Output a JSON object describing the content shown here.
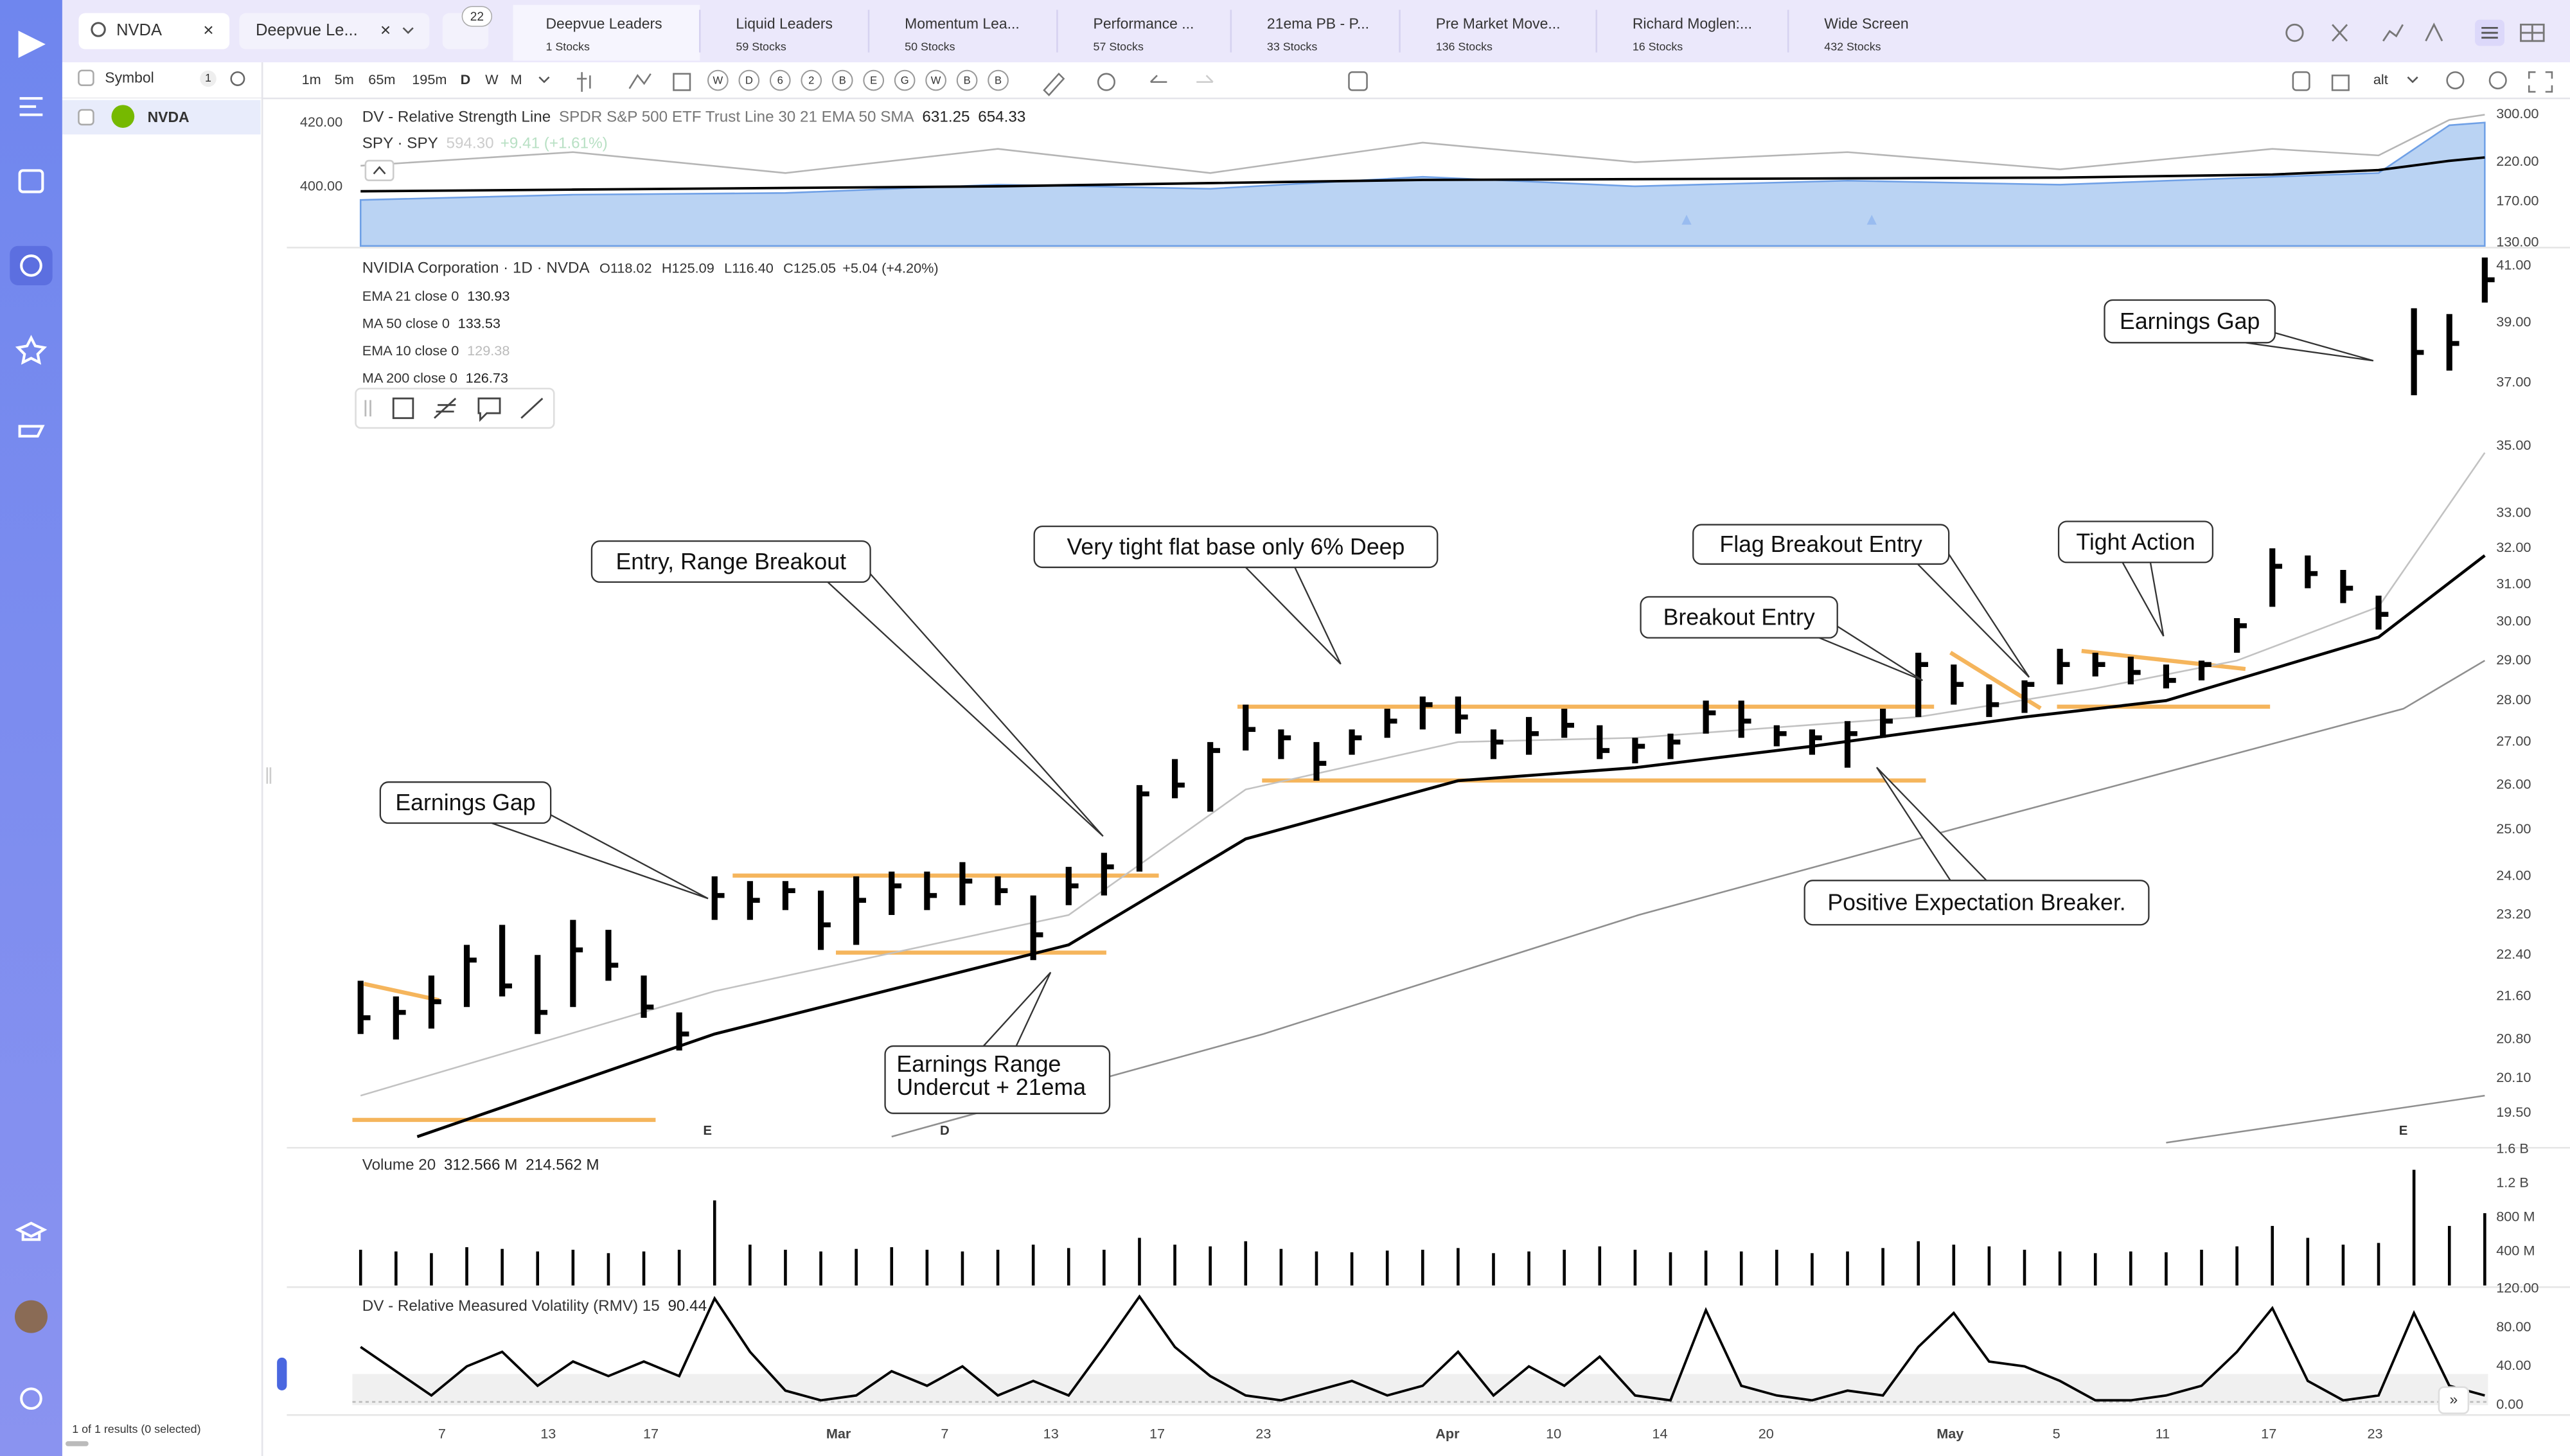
{
  "search": {
    "query": "NVDA",
    "watchlist": "Deepvue Le...",
    "filters": "22"
  },
  "tabs": [
    {
      "name": "Deepvue Leaders",
      "count": "1 Stocks"
    },
    {
      "name": "Liquid Leaders",
      "count": "59 Stocks"
    },
    {
      "name": "Momentum Lea...",
      "count": "50 Stocks"
    },
    {
      "name": "Performance ...",
      "count": "57 Stocks"
    },
    {
      "name": "21ema PB - P...",
      "count": "33 Stocks"
    },
    {
      "name": "Pre Market Move...",
      "count": "136 Stocks"
    },
    {
      "name": "Richard Moglen:...",
      "count": "16 Stocks"
    },
    {
      "name": "Wide Screen",
      "count": "432 Stocks"
    }
  ],
  "watchlist": {
    "header": "Symbol",
    "count": "1",
    "rows": [
      {
        "symbol": "NVDA"
      }
    ],
    "footer": "1 of 1 results (0 selected)"
  },
  "toolbar": {
    "intervals": [
      "1m",
      "5m",
      "65m",
      "195m",
      "D",
      "W",
      "M"
    ],
    "shortcuts": [
      "W",
      "D",
      "6",
      "2",
      "B",
      "E",
      "G",
      "W",
      "B",
      "B"
    ],
    "layout": "alt"
  },
  "chart_data": [
    {
      "type": "line",
      "title": "DV - Relative Strength Line",
      "subtitle": "SPDR S&P 500 ETF Trust Line 30 21 EMA 50 SMA",
      "readings": [
        "631.25",
        "654.33"
      ],
      "comparison": {
        "symbol": "SPY · SPY",
        "price": "594.30",
        "change": "+9.41 (+1.61%)"
      },
      "x": [
        0,
        6,
        12,
        18,
        24,
        30,
        36,
        42,
        48,
        54,
        57,
        59,
        60
      ],
      "ylim": [
        381.5,
        426.7
      ],
      "yticks": [
        {
          "value": 420,
          "label": "420.00"
        },
        {
          "value": 400,
          "label": "400.00"
        }
      ],
      "y2lim": [
        127.4,
        326.6
      ],
      "y2log": true,
      "y2ticks": [
        {
          "value": 300,
          "label": "300.00"
        },
        {
          "value": 220,
          "label": "220.00"
        },
        {
          "value": 170,
          "label": "170.00"
        },
        {
          "value": 130,
          "label": "130.00"
        }
      ],
      "series": [
        {
          "color": "#a9c8f0",
          "style": "area",
          "axis": "y2",
          "values": [
            172,
            178,
            180,
            190,
            185,
            200,
            188,
            195,
            190,
            200,
            205,
            280,
            285
          ]
        },
        {
          "color": "#b5b5b5",
          "axis": "y2",
          "values": [
            215,
            235,
            205,
            240,
            205,
            250,
            220,
            235,
            210,
            240,
            230,
            290,
            300
          ]
        },
        {
          "color": "#000000",
          "axis": "y2",
          "values": [
            182,
            184,
            186,
            188,
            192,
            196,
            197,
            198,
            199,
            203,
            209,
            222,
            227
          ]
        }
      ]
    },
    {
      "type": "ohlc",
      "title": "NVIDIA Corporation · 1D · NVDA",
      "quote": {
        "open": "O118.02",
        "high": "H125.09",
        "low": "L116.40",
        "close": "C125.05",
        "change": "+5.04 (+4.20%)"
      },
      "color": "#000000",
      "log": true,
      "ylim": [
        18.97,
        41.6
      ],
      "yticks": [
        {
          "value": 41,
          "label": "41.00"
        },
        {
          "value": 39,
          "label": "39.00"
        },
        {
          "value": 37,
          "label": "37.00"
        },
        {
          "value": 35,
          "label": "35.00"
        },
        {
          "value": 33,
          "label": "33.00"
        },
        {
          "value": 32,
          "label": "32.00"
        },
        {
          "value": 31,
          "label": "31.00"
        },
        {
          "value": 30,
          "label": "30.00"
        },
        {
          "value": 29,
          "label": "29.00"
        },
        {
          "value": 28,
          "label": "28.00"
        },
        {
          "value": 27,
          "label": "27.00"
        },
        {
          "value": 26,
          "label": "26.00"
        },
        {
          "value": 25,
          "label": "25.00"
        },
        {
          "value": 24,
          "label": "24.00"
        },
        {
          "value": 23.2,
          "label": "23.20"
        },
        {
          "value": 22.4,
          "label": "22.40"
        },
        {
          "value": 21.6,
          "label": "21.60"
        },
        {
          "value": 20.8,
          "label": "20.80"
        },
        {
          "value": 20.1,
          "label": "20.10"
        },
        {
          "value": 19.5,
          "label": "19.50"
        }
      ],
      "xlim": [
        0,
        60
      ],
      "xticks": [
        {
          "value": 2.3,
          "label": "7"
        },
        {
          "value": 5.3,
          "label": "13"
        },
        {
          "value": 8.2,
          "label": "17"
        },
        {
          "value": 13.5,
          "label": "Mar"
        },
        {
          "value": 16.5,
          "label": "7"
        },
        {
          "value": 19.5,
          "label": "13"
        },
        {
          "value": 22.5,
          "label": "17"
        },
        {
          "value": 25.5,
          "label": "23"
        },
        {
          "value": 30.7,
          "label": "Apr"
        },
        {
          "value": 33.7,
          "label": "10"
        },
        {
          "value": 36.7,
          "label": "14"
        },
        {
          "value": 39.7,
          "label": "20"
        },
        {
          "value": 44.9,
          "label": "May"
        },
        {
          "value": 47.9,
          "label": "5"
        },
        {
          "value": 50.9,
          "label": "11"
        },
        {
          "value": 53.9,
          "label": "17"
        },
        {
          "value": 56.9,
          "label": "23"
        }
      ],
      "x": [
        0,
        1,
        2,
        3,
        4,
        5,
        6,
        7,
        8,
        9,
        10,
        11,
        12,
        13,
        14,
        15,
        16,
        17,
        18,
        19,
        20,
        21,
        22,
        23,
        24,
        25,
        26,
        27,
        28,
        29,
        30,
        31,
        32,
        33,
        34,
        35,
        36,
        37,
        38,
        39,
        40,
        41,
        42,
        43,
        44,
        45,
        46,
        47,
        48,
        49,
        50,
        51,
        52,
        53,
        54,
        55,
        56,
        57,
        58,
        59,
        60
      ],
      "high": [
        21.9,
        21.6,
        22.0,
        22.6,
        23.0,
        22.4,
        23.1,
        22.9,
        22.0,
        21.3,
        24.0,
        23.9,
        23.9,
        23.7,
        24.0,
        24.1,
        24.1,
        24.3,
        24.0,
        23.6,
        24.2,
        24.5,
        26.0,
        26.6,
        27.0,
        27.9,
        27.3,
        27.0,
        27.3,
        27.8,
        28.1,
        28.1,
        27.3,
        27.6,
        27.8,
        27.4,
        27.1,
        27.2,
        28.0,
        28.0,
        27.4,
        27.3,
        27.5,
        27.8,
        29.2,
        28.9,
        28.4,
        28.5,
        29.3,
        29.2,
        29.1,
        28.9,
        29.0,
        30.1,
        32.0,
        31.8,
        31.4,
        30.7,
        39.5,
        39.3,
        41.3
      ],
      "low": [
        20.9,
        20.8,
        21.0,
        21.4,
        21.6,
        20.9,
        21.4,
        21.9,
        21.2,
        20.6,
        23.1,
        23.1,
        23.3,
        22.5,
        22.6,
        23.2,
        23.3,
        23.4,
        23.4,
        22.3,
        23.4,
        23.6,
        24.1,
        25.7,
        25.4,
        26.8,
        26.6,
        26.1,
        26.7,
        27.1,
        27.3,
        27.2,
        26.6,
        26.7,
        27.1,
        26.6,
        26.5,
        26.6,
        27.2,
        27.1,
        26.9,
        26.7,
        26.4,
        27.1,
        27.6,
        27.9,
        27.6,
        27.7,
        28.4,
        28.6,
        28.4,
        28.3,
        28.5,
        29.2,
        30.4,
        30.9,
        30.5,
        29.8,
        36.6,
        37.4,
        39.7
      ],
      "close": [
        21.2,
        21.3,
        21.5,
        22.3,
        21.8,
        21.3,
        22.5,
        22.2,
        21.4,
        20.9,
        23.6,
        23.5,
        23.7,
        23.0,
        23.5,
        23.8,
        23.6,
        23.9,
        23.7,
        22.8,
        23.8,
        24.2,
        25.8,
        26.0,
        26.8,
        27.3,
        27.1,
        26.5,
        27.1,
        27.5,
        27.9,
        27.6,
        27.0,
        27.2,
        27.4,
        26.8,
        26.9,
        27.0,
        27.7,
        27.5,
        27.2,
        27.1,
        27.2,
        27.5,
        28.9,
        28.4,
        27.9,
        28.4,
        28.9,
        28.9,
        28.7,
        28.5,
        28.9,
        29.9,
        31.5,
        31.3,
        30.9,
        30.2,
        38.0,
        38.3,
        40.5
      ],
      "lines": [
        {
          "name": "EMA 21 close 0",
          "last": "130.93",
          "color": "#000000",
          "x": [
            1.6,
            10,
            20,
            25,
            31,
            36,
            41,
            47,
            51,
            57,
            60
          ],
          "values": [
            19.1,
            20.9,
            22.6,
            24.8,
            26.1,
            26.4,
            26.9,
            27.6,
            28.0,
            29.6,
            31.8
          ]
        },
        {
          "name": "MA 50 close 0",
          "last": "133.53",
          "color": "#8f8f8f",
          "x": [
            15,
            25.5,
            36.1,
            45.4,
            57.7,
            60
          ],
          "values": [
            19.1,
            20.9,
            23.2,
            25.1,
            27.8,
            29.0
          ]
        },
        {
          "name": "EMA 10 close 0",
          "last": "129.38",
          "color": "#c2c2c2",
          "x": [
            0,
            10,
            20,
            25,
            31,
            36,
            44,
            49,
            53,
            57,
            60
          ],
          "values": [
            19.8,
            21.7,
            23.2,
            25.9,
            27.0,
            27.1,
            27.6,
            28.3,
            29.0,
            30.4,
            34.8
          ]
        },
        {
          "name": "MA 200 close 0",
          "last": "126.73",
          "color": "#8f8f8f",
          "x": [
            51,
            60
          ],
          "values": [
            19.0,
            19.8
          ]
        }
      ],
      "events": [
        {
          "x": 9.8,
          "label": "E",
          "color": "#1aa36f"
        },
        {
          "x": 16.5,
          "label": "D",
          "color": "#2a6cd6"
        },
        {
          "x": 57.7,
          "label": "E",
          "color": "#1aa36f"
        }
      ],
      "annotations": [
        {
          "text": "Earnings Gap"
        },
        {
          "text": "Entry, Range Breakout"
        },
        {
          "text": "Very tight flat base only 6% Deep"
        },
        {
          "text": "Flag Breakout Entry"
        },
        {
          "text": "Breakout Entry"
        },
        {
          "text": "Tight Action"
        },
        {
          "text": "Positive Expectation Breaker."
        },
        {
          "lines": [
            "Earnings Range",
            "Undercut + 21ema"
          ]
        },
        {
          "text": "Earnings Gap"
        }
      ]
    },
    {
      "type": "bar",
      "title": "Volume 20",
      "readings": [
        "312.566 M",
        "214.562 M"
      ],
      "color": "#000000",
      "ylim": [
        0,
        1600
      ],
      "yticks": [
        {
          "value": 1600,
          "label": "1.6 B"
        },
        {
          "value": 1200,
          "label": "1.2 B"
        },
        {
          "value": 800,
          "label": "800 M"
        },
        {
          "value": 400,
          "label": "400 M"
        }
      ],
      "values": [
        420,
        400,
        380,
        450,
        430,
        400,
        420,
        380,
        400,
        420,
        1000,
        480,
        420,
        400,
        430,
        450,
        420,
        400,
        420,
        480,
        440,
        420,
        560,
        480,
        460,
        520,
        430,
        400,
        390,
        410,
        420,
        440,
        380,
        400,
        420,
        460,
        420,
        390,
        410,
        400,
        420,
        380,
        400,
        440,
        520,
        480,
        460,
        420,
        400,
        380,
        400,
        390,
        420,
        460,
        700,
        560,
        480,
        500,
        1360,
        700,
        850
      ]
    },
    {
      "type": "line",
      "title": "DV - Relative Measured Volatility (RMV) 15",
      "readings": [
        "90.44"
      ],
      "ylim": [
        0,
        120
      ],
      "yticks": [
        {
          "value": 120,
          "label": "120.00"
        },
        {
          "value": 80,
          "label": "80.00"
        },
        {
          "value": 40,
          "label": "40.00"
        },
        {
          "value": 0,
          "label": "0.00"
        }
      ],
      "series": [
        {
          "color": "#000000",
          "values": [
            60,
            35,
            10,
            40,
            55,
            20,
            45,
            30,
            45,
            30,
            110,
            55,
            15,
            5,
            10,
            35,
            20,
            40,
            10,
            25,
            10,
            60,
            112,
            60,
            30,
            10,
            5,
            15,
            25,
            10,
            20,
            55,
            10,
            40,
            20,
            50,
            10,
            5,
            98,
            20,
            10,
            5,
            15,
            10,
            60,
            95,
            45,
            40,
            25,
            5,
            5,
            10,
            20,
            55,
            100,
            25,
            5,
            10,
            95,
            20,
            10
          ]
        }
      ]
    }
  ]
}
